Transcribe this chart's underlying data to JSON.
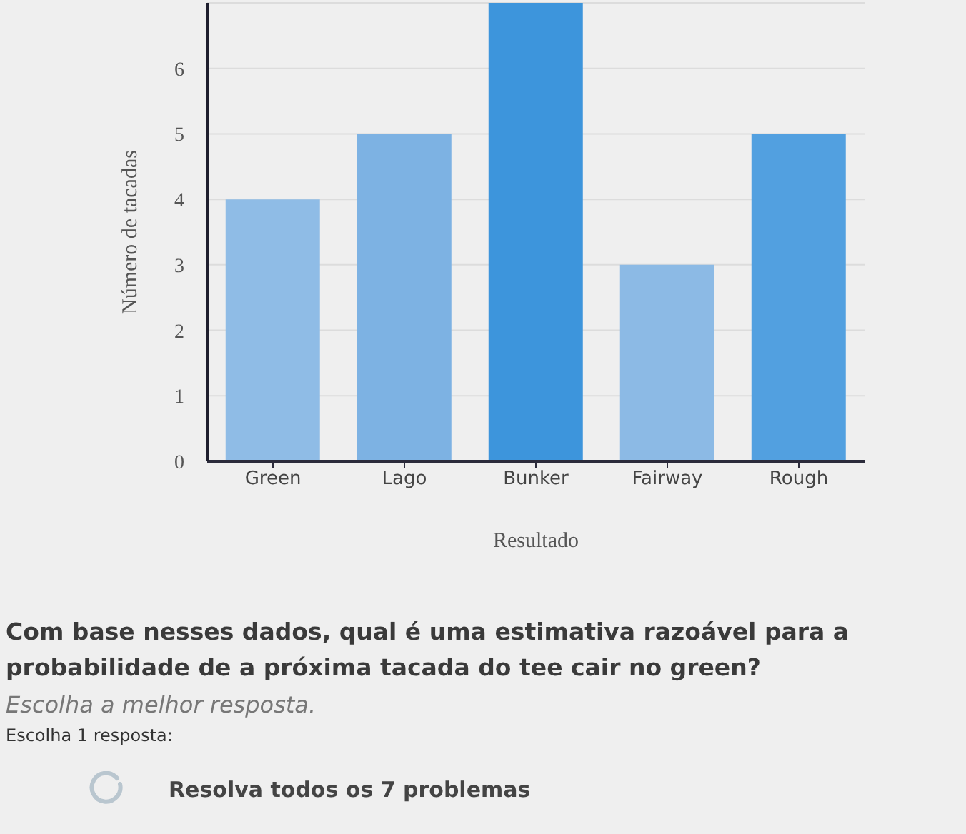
{
  "chart_data": {
    "type": "bar",
    "categories": [
      "Green",
      "Lago",
      "Bunker",
      "Fairway",
      "Rough"
    ],
    "values": [
      4,
      5,
      7,
      3,
      5
    ],
    "colors": [
      "#8fbce6",
      "#7db2e3",
      "#3d95dc",
      "#8cbae5",
      "#52a0e0"
    ],
    "xlabel": "Resultado",
    "ylabel": "Número de tacadas",
    "ylim": [
      0,
      7
    ],
    "yticks": [
      0,
      1,
      2,
      3,
      4,
      5,
      6,
      {
        "value": 7,
        "label": null
      }
    ],
    "grid": "y",
    "annotations": [
      "Com base nesses dados, qual é uma estimativa razoável para a probabilidade de a próxima tacada do tee cair no green?",
      "Escolha a melhor resposta.",
      "Escolha 1 resposta:",
      "Resolva todos os 7 problemas"
    ]
  }
}
